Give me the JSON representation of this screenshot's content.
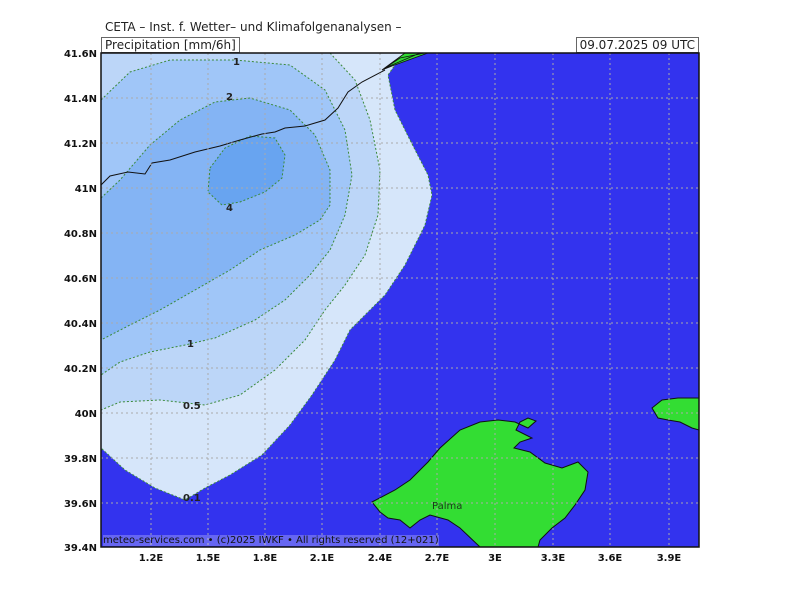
{
  "header": {
    "model": "CETA – Inst. f. Wetter– und Klimafolgenanalysen –",
    "field": "Precipitation [mm/6h]",
    "valid": "09.07.2025 09 UTC"
  },
  "map": {
    "lon_labels": [
      "1.2E",
      "1.5E",
      "1.8E",
      "2.1E",
      "2.4E",
      "2.7E",
      "3E",
      "3.3E",
      "3.6E",
      "3.9E"
    ],
    "lat_labels": [
      "41.6N",
      "41.4N",
      "41.2N",
      "41N",
      "40.8N",
      "40.6N",
      "40.4N",
      "40.2N",
      "40N",
      "39.8N",
      "39.6N",
      "39.4N"
    ],
    "contour_labels": [
      "1",
      "2",
      "4",
      "1",
      "0.5",
      "0.1"
    ],
    "city": "Palma",
    "copyright": "meteo-services.com • (c)2025 IWKF • All rights reserved (12+021)"
  },
  "colors": {
    "sea": "#3333ee",
    "land": "#33dd33",
    "precip_0_1": "#d6e6fa",
    "precip_0_5": "#bcd6f8",
    "precip_1": "#a0c6f8",
    "precip_2": "#84b4f4",
    "precip_4": "#68a4f0"
  }
}
